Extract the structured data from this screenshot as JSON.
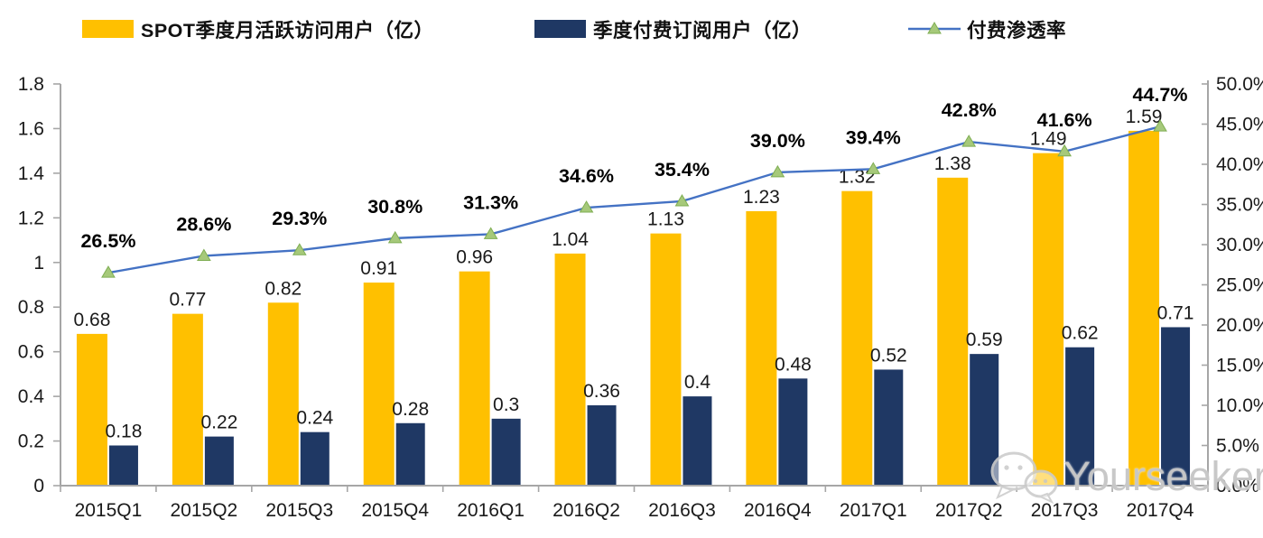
{
  "legend": [
    {
      "label": "SPOT季度月活跃访问用户（亿）",
      "color": "#FFC000",
      "type": "bar"
    },
    {
      "label": "季度付费订阅用户（亿）",
      "color": "#1F3864",
      "type": "bar"
    },
    {
      "label": "付费渗透率",
      "color": "#4472C4",
      "marker_color": "#A6C97A",
      "type": "line"
    }
  ],
  "chart_data": {
    "type": "bar",
    "subtype": "combo-bar-line",
    "title": "",
    "categories": [
      "2015Q1",
      "2015Q2",
      "2015Q3",
      "2015Q4",
      "2016Q1",
      "2016Q2",
      "2016Q3",
      "2016Q4",
      "2017Q1",
      "2017Q2",
      "2017Q3",
      "2017Q4"
    ],
    "series": [
      {
        "name": "SPOT季度月活跃访问用户（亿）",
        "type": "bar",
        "axis": "left",
        "color": "#FFC000",
        "values": [
          0.68,
          0.77,
          0.82,
          0.91,
          0.96,
          1.04,
          1.13,
          1.23,
          1.32,
          1.38,
          1.49,
          1.59
        ],
        "labels": [
          "0.68",
          "0.77",
          "0.82",
          "0.91",
          "0.96",
          "1.04",
          "1.13",
          "1.23",
          "1.32",
          "1.38",
          "1.49",
          "1.59"
        ]
      },
      {
        "name": "季度付费订阅用户（亿）",
        "type": "bar",
        "axis": "left",
        "color": "#1F3864",
        "values": [
          0.18,
          0.22,
          0.24,
          0.28,
          0.3,
          0.36,
          0.4,
          0.48,
          0.52,
          0.59,
          0.62,
          0.71
        ],
        "labels": [
          "0.18",
          "0.22",
          "0.24",
          "0.28",
          "0.3",
          "0.36",
          "0.4",
          "0.48",
          "0.52",
          "0.59",
          "0.62",
          "0.71"
        ]
      },
      {
        "name": "付费渗透率",
        "type": "line",
        "axis": "right",
        "color": "#4472C4",
        "marker": "triangle",
        "marker_color": "#A6C97A",
        "values": [
          26.5,
          28.6,
          29.3,
          30.8,
          31.3,
          34.6,
          35.4,
          39.0,
          39.4,
          42.8,
          41.6,
          44.7
        ],
        "labels": [
          "26.5%",
          "28.6%",
          "29.3%",
          "30.8%",
          "31.3%",
          "34.6%",
          "35.4%",
          "39.0%",
          "39.4%",
          "42.8%",
          "41.6%",
          "44.7%"
        ]
      }
    ],
    "left_axis": {
      "min": 0,
      "max": 1.8,
      "step": 0.2,
      "tick_labels": [
        "0",
        "0.2",
        "0.4",
        "0.6",
        "0.8",
        "1",
        "1.2",
        "1.4",
        "1.6",
        "1.8"
      ]
    },
    "right_axis": {
      "min": 0,
      "max": 50,
      "step": 5,
      "tick_labels": [
        "0.0%",
        "5.0%",
        "10.0%",
        "15.0%",
        "20.0%",
        "25.0%",
        "30.0%",
        "35.0%",
        "40.0%",
        "45.0%",
        "50.0%"
      ]
    },
    "grid": false,
    "legend_position": "top",
    "axis_color": "#A6A6A6"
  },
  "watermark": {
    "text": "Yourseeker",
    "icon": "wechat-icon"
  }
}
